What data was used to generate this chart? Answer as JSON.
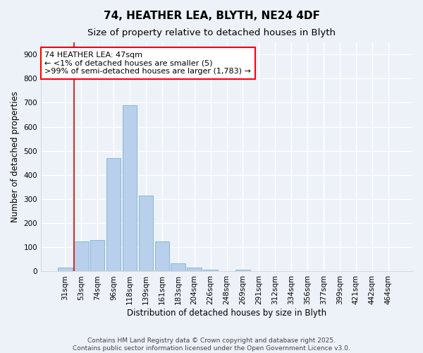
{
  "title_line1": "74, HEATHER LEA, BLYTH, NE24 4DF",
  "title_line2": "Size of property relative to detached houses in Blyth",
  "xlabel": "Distribution of detached houses by size in Blyth",
  "ylabel": "Number of detached properties",
  "categories": [
    "31sqm",
    "53sqm",
    "74sqm",
    "96sqm",
    "118sqm",
    "139sqm",
    "161sqm",
    "183sqm",
    "204sqm",
    "226sqm",
    "248sqm",
    "269sqm",
    "291sqm",
    "312sqm",
    "334sqm",
    "356sqm",
    "377sqm",
    "399sqm",
    "421sqm",
    "442sqm",
    "464sqm"
  ],
  "values": [
    15,
    125,
    130,
    470,
    690,
    315,
    125,
    35,
    15,
    8,
    0,
    7,
    0,
    0,
    0,
    0,
    0,
    0,
    0,
    0,
    0
  ],
  "bar_color": "#b8d0eb",
  "bar_edge_color": "#7aafd4",
  "highlight_color": "#cc3333",
  "highlight_bar_index": 1,
  "annotation_text_line1": "74 HEATHER LEA: 47sqm",
  "annotation_text_line2": "← <1% of detached houses are smaller (5)",
  "annotation_text_line3": ">99% of semi-detached houses are larger (1,783) →",
  "ylim": [
    0,
    950
  ],
  "yticks": [
    0,
    100,
    200,
    300,
    400,
    500,
    600,
    700,
    800,
    900
  ],
  "footer_line1": "Contains HM Land Registry data © Crown copyright and database right 2025.",
  "footer_line2": "Contains public sector information licensed under the Open Government Licence v3.0.",
  "bg_color": "#edf2f9",
  "grid_color": "white",
  "title_fontsize": 11,
  "subtitle_fontsize": 9.5,
  "axis_label_fontsize": 8.5,
  "tick_fontsize": 7.5,
  "annotation_fontsize": 8,
  "footer_fontsize": 6.5
}
